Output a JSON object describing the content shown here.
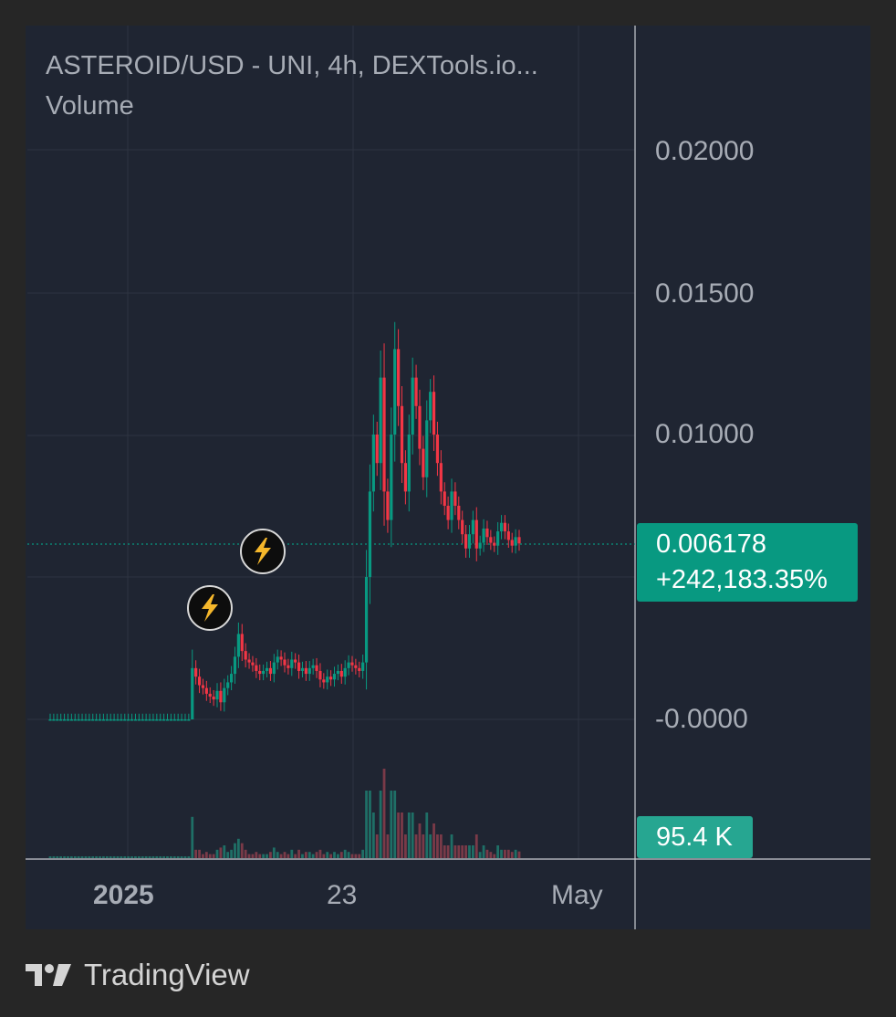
{
  "header": {
    "symbol_line": "ASTEROID/USD - UNI, 4h, DEXTools.io...",
    "volume_label": "Volume"
  },
  "price_axis": {
    "ticks": [
      "0.02000",
      "0.01500",
      "0.01000",
      "-0.0000"
    ]
  },
  "time_axis": {
    "ticks": [
      "2025",
      "23",
      "May"
    ]
  },
  "last_price": {
    "value": "0.006178",
    "change": "+242,183.35%"
  },
  "volume_badge": "95.4 K",
  "events": [
    {
      "icon": "lightning-bolt-icon"
    },
    {
      "icon": "lightning-bolt-icon"
    }
  ],
  "brand": {
    "name": "TradingView",
    "logo": "tradingview-logo"
  },
  "colors": {
    "background": "#262626",
    "panel": "#1f2532",
    "up": "#089981",
    "down": "#f23645",
    "text": "#a7acb5"
  },
  "chart_data": {
    "type": "candlestick",
    "symbol": "ASTEROID/USD",
    "interval": "4h",
    "price_range": [
      0,
      0.022
    ],
    "last_price": 0.006178,
    "price_series": [
      0,
      0,
      0,
      0,
      0,
      0,
      0,
      0,
      0,
      0,
      0,
      0,
      0,
      0,
      0,
      0,
      0,
      0,
      0,
      0,
      0,
      0,
      0,
      0,
      0,
      0,
      0,
      0,
      0,
      0,
      0,
      0,
      0,
      0,
      0,
      0,
      0,
      0,
      0,
      0,
      0.0018,
      0.0015,
      0.0012,
      0.0011,
      0.0009,
      0.0008,
      0.0007,
      0.001,
      0.0006,
      0.0011,
      0.0013,
      0.0016,
      0.0022,
      0.003,
      0.0024,
      0.0021,
      0.002,
      0.0019,
      0.0017,
      0.0016,
      0.0017,
      0.0018,
      0.0016,
      0.002,
      0.0022,
      0.0021,
      0.0019,
      0.0018,
      0.0021,
      0.002,
      0.0017,
      0.0018,
      0.0016,
      0.0018,
      0.0019,
      0.0017,
      0.0014,
      0.0013,
      0.0015,
      0.0014,
      0.0016,
      0.0017,
      0.0015,
      0.0018,
      0.002,
      0.0019,
      0.0018,
      0.0017,
      0.002,
      0.005,
      0.008,
      0.01,
      0.009,
      0.012,
      0.008,
      0.007,
      0.01,
      0.013,
      0.011,
      0.009,
      0.008,
      0.01,
      0.012,
      0.011,
      0.0095,
      0.0085,
      0.0105,
      0.0115,
      0.01,
      0.009,
      0.008,
      0.0075,
      0.007,
      0.008,
      0.0075,
      0.007,
      0.0065,
      0.006,
      0.0065,
      0.007,
      0.006,
      0.0062,
      0.0067,
      0.0064,
      0.0062,
      0.0061,
      0.0066,
      0.0069,
      0.0066,
      0.0063,
      0.0061,
      0.0064,
      0.006178
    ],
    "volume_max": 95400
  }
}
